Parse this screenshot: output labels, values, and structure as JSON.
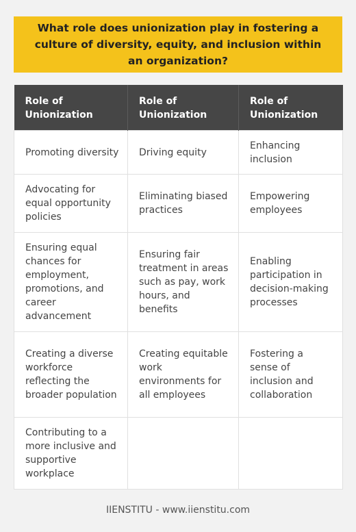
{
  "title": "What role does unionization play in fostering a culture of diversity, equity, and inclusion within an organization?",
  "table": {
    "headers": [
      "Role of Unionization",
      "Role of Unionization",
      "Role of Unionization"
    ],
    "rows": [
      [
        "Promoting diversity",
        "Driving equity",
        "Enhancing inclusion"
      ],
      [
        "Advocating for equal opportunity policies",
        "Eliminating biased practices",
        "Empowering employees"
      ],
      [
        "Ensuring equal chances for employment, promotions, and career advancement",
        "Ensuring fair treatment in areas such as pay, work hours, and benefits",
        "Enabling participation in decision-making processes"
      ],
      [
        "Creating a diverse workforce reflecting the broader population",
        "Creating equitable work environments for all employees",
        "Fostering a sense of inclusion and collaboration"
      ],
      [
        "Contributing to a more inclusive and supportive workplace",
        "",
        ""
      ]
    ]
  },
  "footer": "IIENSTITU - www.iienstitu.com",
  "colors": {
    "title_background": "#f4c21b",
    "header_background": "#464646",
    "page_background": "#f2f2f2"
  }
}
